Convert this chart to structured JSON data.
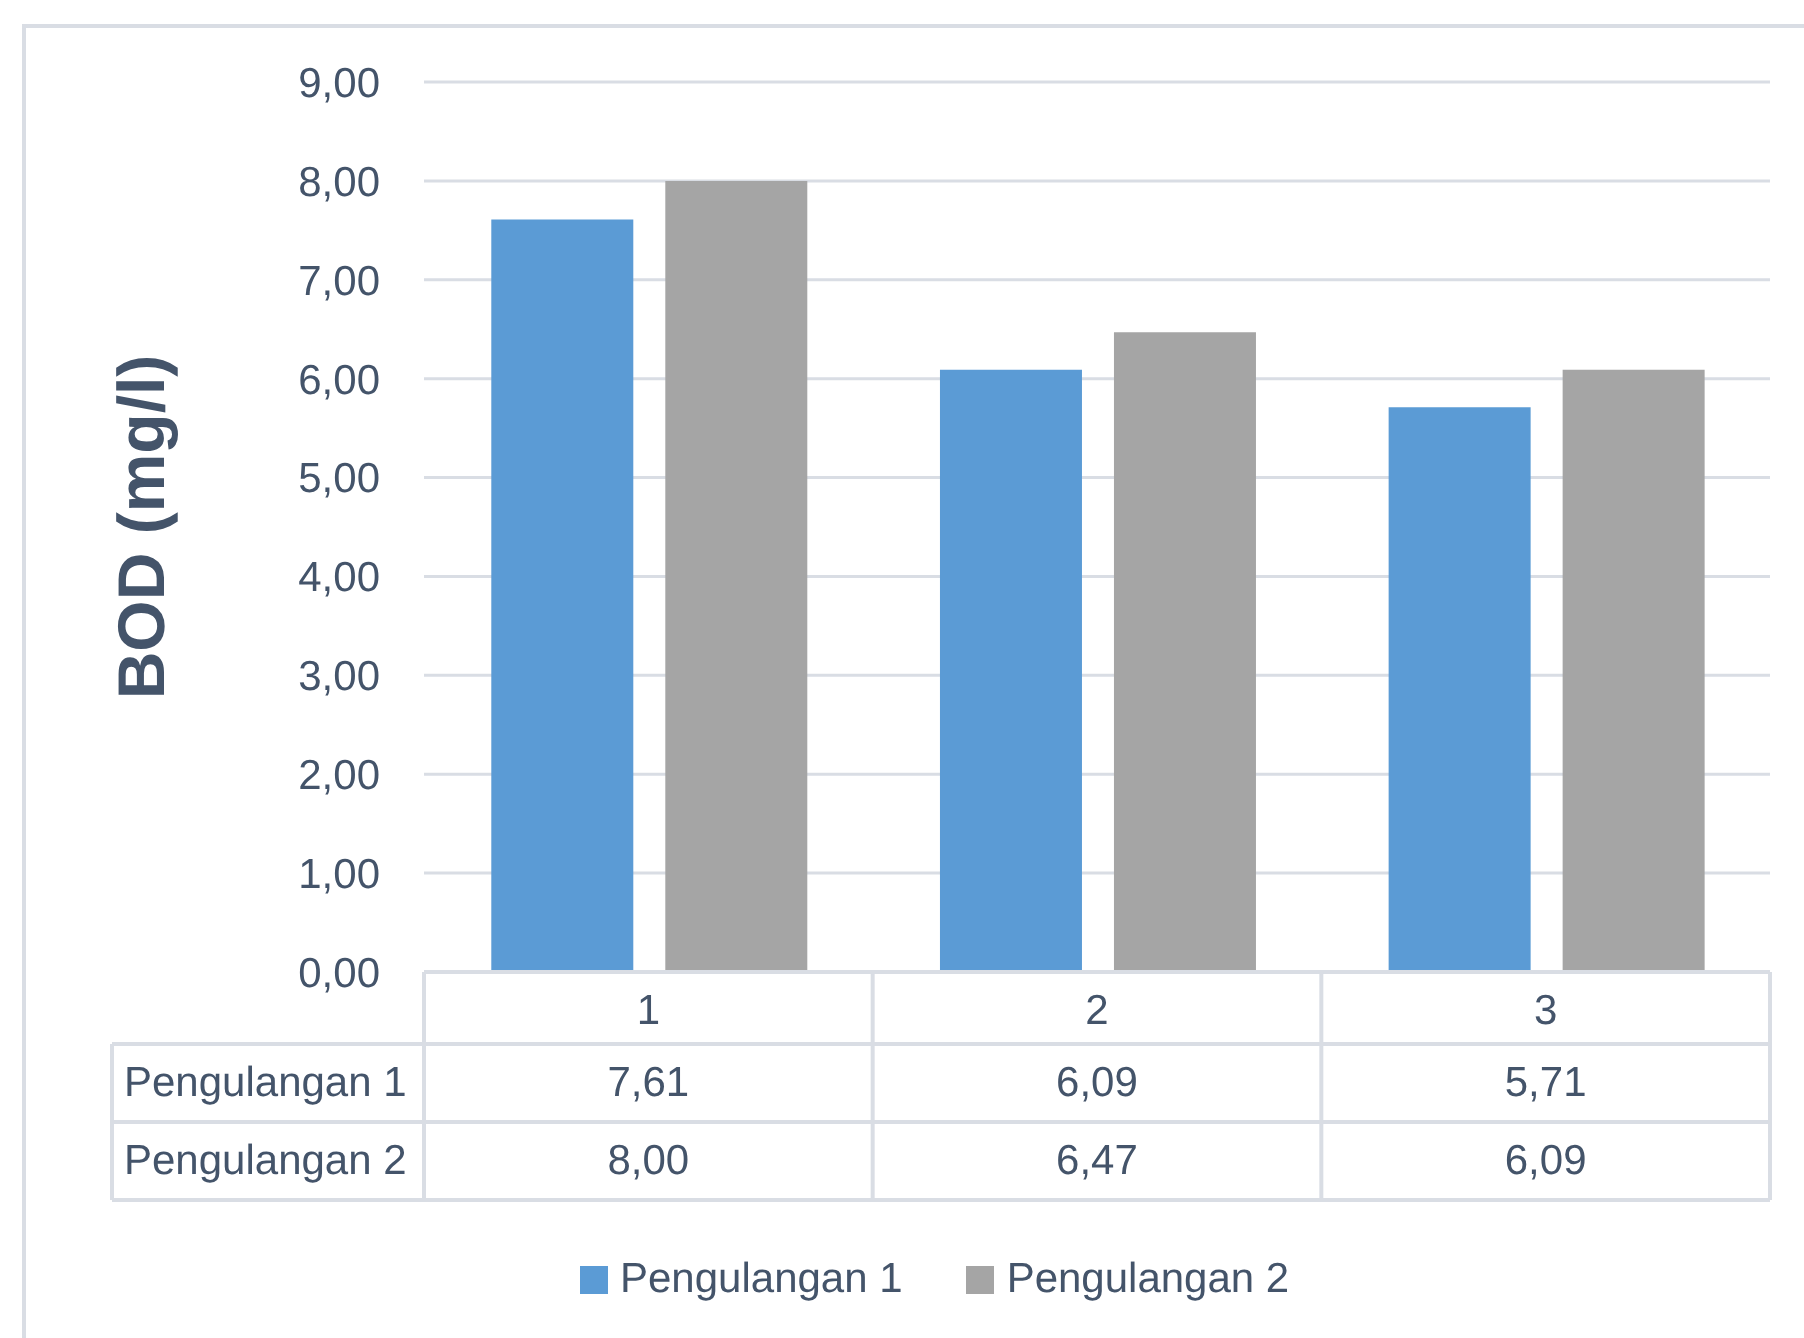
{
  "chart_data": {
    "type": "bar",
    "ylabel": "BOD (mg/l)",
    "categories": [
      "1",
      "2",
      "3"
    ],
    "series": [
      {
        "name": "Pengulangan 1",
        "color": "#5b9bd5",
        "values": [
          7.61,
          6.09,
          5.71
        ],
        "value_labels": [
          "7,61",
          "6,09",
          "5,71"
        ]
      },
      {
        "name": "Pengulangan 2",
        "color": "#a5a5a5",
        "values": [
          8.0,
          6.47,
          6.09
        ],
        "value_labels": [
          "8,00",
          "6,47",
          "6,09"
        ]
      }
    ],
    "ylim": [
      0,
      9
    ],
    "yticks": [
      {
        "value": 0,
        "label": "0,00"
      },
      {
        "value": 1,
        "label": "1,00"
      },
      {
        "value": 2,
        "label": "2,00"
      },
      {
        "value": 3,
        "label": "3,00"
      },
      {
        "value": 4,
        "label": "4,00"
      },
      {
        "value": 5,
        "label": "5,00"
      },
      {
        "value": 6,
        "label": "6,00"
      },
      {
        "value": 7,
        "label": "7,00"
      },
      {
        "value": 8,
        "label": "8,00"
      },
      {
        "value": 9,
        "label": "9,00"
      }
    ],
    "grid": "y",
    "legend": "bottom"
  }
}
